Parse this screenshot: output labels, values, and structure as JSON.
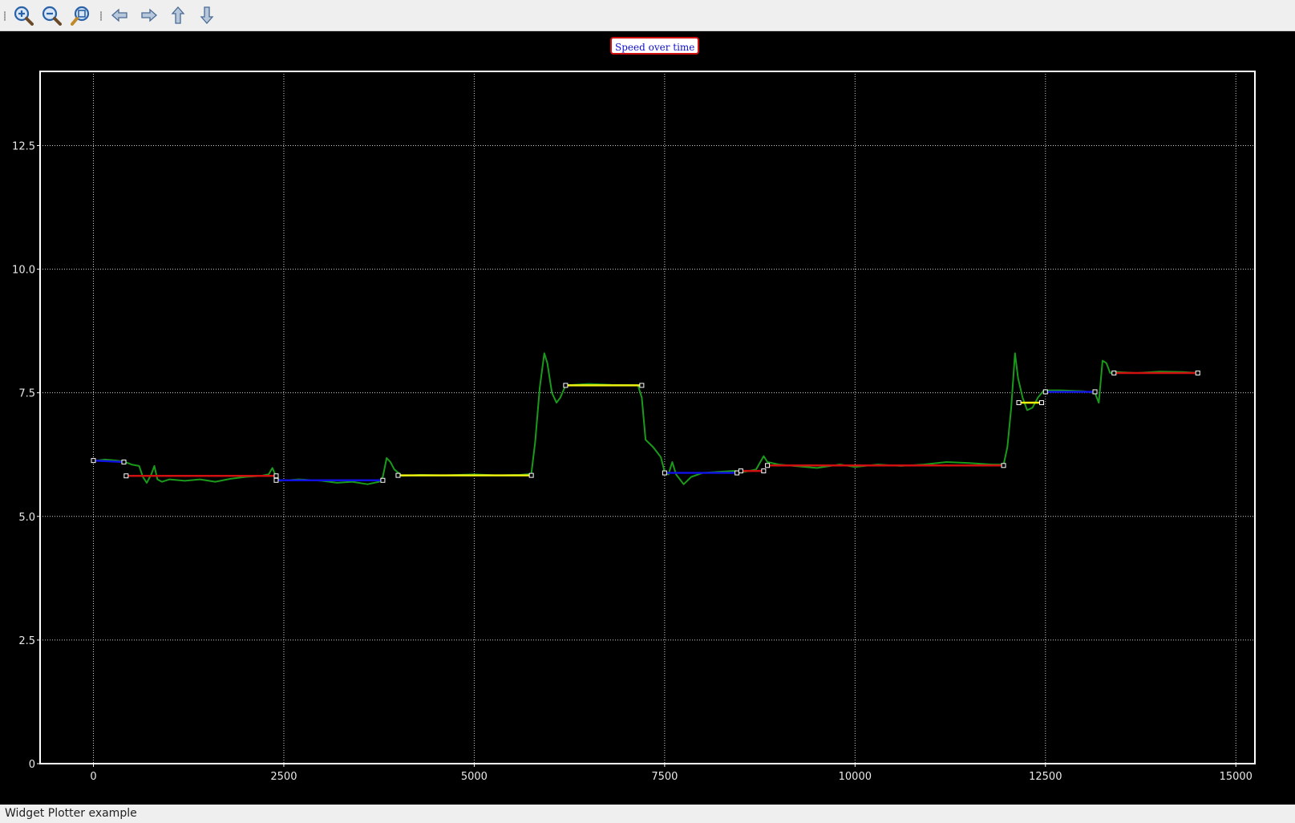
{
  "toolbar": {
    "buttons": [
      {
        "name": "zoom-in-icon"
      },
      {
        "name": "zoom-out-icon"
      },
      {
        "name": "zoom-reset-icon"
      },
      {
        "name": "arrow-left-icon"
      },
      {
        "name": "arrow-right-icon"
      },
      {
        "name": "arrow-up-icon"
      },
      {
        "name": "arrow-down-icon"
      }
    ]
  },
  "status": {
    "text": "Widget Plotter example"
  },
  "colors": {
    "background": "#000000",
    "grid": "#d0d0d0",
    "frame": "#ffffff",
    "speed_curve": "#1a9a1a",
    "segment_red": "#d01010",
    "segment_blue": "#1010e0",
    "segment_yellow": "#f0f010",
    "title_border": "#d01010",
    "title_text": "#1010d0"
  },
  "chart_data": {
    "type": "line",
    "title": "Speed over time",
    "xlabel": "",
    "ylabel": "",
    "xlim": [
      -700,
      15250
    ],
    "ylim": [
      0,
      14
    ],
    "x_ticks": [
      0,
      2500,
      5000,
      7500,
      10000,
      12500,
      15000
    ],
    "x_tick_labels": [
      "0",
      "2500",
      "5000",
      "7500",
      "10000",
      "12500",
      "15000"
    ],
    "y_ticks": [
      0,
      2.5,
      5,
      7.5,
      10,
      12.5
    ],
    "y_tick_labels": [
      "0",
      "2.5",
      "5.0",
      "7.5",
      "10.0",
      "12.5"
    ],
    "grid": true,
    "series": [
      {
        "type": "line",
        "color": "#1a9a1a",
        "points": [
          [
            0,
            6.12
          ],
          [
            150,
            6.15
          ],
          [
            300,
            6.13
          ],
          [
            420,
            6.1
          ],
          [
            500,
            6.05
          ],
          [
            600,
            6.02
          ],
          [
            650,
            5.8
          ],
          [
            700,
            5.68
          ],
          [
            760,
            5.85
          ],
          [
            800,
            6.02
          ],
          [
            840,
            5.75
          ],
          [
            900,
            5.7
          ],
          [
            1000,
            5.75
          ],
          [
            1200,
            5.72
          ],
          [
            1400,
            5.75
          ],
          [
            1600,
            5.7
          ],
          [
            1800,
            5.76
          ],
          [
            2000,
            5.8
          ],
          [
            2200,
            5.82
          ],
          [
            2300,
            5.85
          ],
          [
            2350,
            5.98
          ],
          [
            2400,
            5.8
          ],
          [
            2450,
            5.72
          ],
          [
            2700,
            5.75
          ],
          [
            3000,
            5.72
          ],
          [
            3200,
            5.68
          ],
          [
            3400,
            5.7
          ],
          [
            3600,
            5.65
          ],
          [
            3750,
            5.7
          ],
          [
            3800,
            5.8
          ],
          [
            3850,
            6.18
          ],
          [
            3900,
            6.1
          ],
          [
            3950,
            5.95
          ],
          [
            4050,
            5.82
          ],
          [
            4300,
            5.84
          ],
          [
            4600,
            5.83
          ],
          [
            5000,
            5.85
          ],
          [
            5300,
            5.83
          ],
          [
            5600,
            5.84
          ],
          [
            5750,
            5.86
          ],
          [
            5800,
            6.5
          ],
          [
            5860,
            7.6
          ],
          [
            5920,
            8.3
          ],
          [
            5960,
            8.1
          ],
          [
            6020,
            7.5
          ],
          [
            6080,
            7.3
          ],
          [
            6130,
            7.4
          ],
          [
            6200,
            7.65
          ],
          [
            6500,
            7.68
          ],
          [
            6800,
            7.66
          ],
          [
            7150,
            7.65
          ],
          [
            7200,
            7.4
          ],
          [
            7250,
            6.55
          ],
          [
            7350,
            6.4
          ],
          [
            7450,
            6.2
          ],
          [
            7500,
            5.9
          ],
          [
            7550,
            5.85
          ],
          [
            7600,
            6.1
          ],
          [
            7650,
            5.85
          ],
          [
            7750,
            5.65
          ],
          [
            7850,
            5.8
          ],
          [
            8000,
            5.88
          ],
          [
            8200,
            5.9
          ],
          [
            8400,
            5.92
          ],
          [
            8550,
            5.9
          ],
          [
            8700,
            5.95
          ],
          [
            8800,
            6.22
          ],
          [
            8850,
            6.1
          ],
          [
            9000,
            6.05
          ],
          [
            9200,
            6.02
          ],
          [
            9500,
            5.98
          ],
          [
            9800,
            6.05
          ],
          [
            10000,
            6.0
          ],
          [
            10300,
            6.05
          ],
          [
            10600,
            6.02
          ],
          [
            10900,
            6.05
          ],
          [
            11200,
            6.1
          ],
          [
            11500,
            6.08
          ],
          [
            11800,
            6.05
          ],
          [
            11950,
            6.05
          ],
          [
            12000,
            6.4
          ],
          [
            12050,
            7.2
          ],
          [
            12100,
            8.3
          ],
          [
            12140,
            7.8
          ],
          [
            12200,
            7.4
          ],
          [
            12260,
            7.15
          ],
          [
            12330,
            7.2
          ],
          [
            12400,
            7.4
          ],
          [
            12480,
            7.55
          ],
          [
            12700,
            7.55
          ],
          [
            13000,
            7.53
          ],
          [
            13150,
            7.5
          ],
          [
            13200,
            7.3
          ],
          [
            13250,
            8.15
          ],
          [
            13300,
            8.1
          ],
          [
            13350,
            7.9
          ],
          [
            13450,
            7.92
          ],
          [
            13700,
            7.9
          ],
          [
            14000,
            7.93
          ],
          [
            14300,
            7.92
          ],
          [
            14500,
            7.9
          ]
        ]
      }
    ],
    "segments": [
      {
        "color": "#1010e0",
        "x1": 0,
        "x2": 400,
        "y1": 6.13,
        "y2": 6.1
      },
      {
        "color": "#d01010",
        "x1": 430,
        "x2": 2400,
        "y1": 5.82,
        "y2": 5.82
      },
      {
        "color": "#1010e0",
        "x1": 2400,
        "x2": 3800,
        "y1": 5.73,
        "y2": 5.73
      },
      {
        "color": "#f0f010",
        "x1": 4000,
        "x2": 5750,
        "y1": 5.83,
        "y2": 5.83
      },
      {
        "color": "#f0f010",
        "x1": 6200,
        "x2": 7200,
        "y1": 7.65,
        "y2": 7.65
      },
      {
        "color": "#1010e0",
        "x1": 7500,
        "x2": 8450,
        "y1": 5.88,
        "y2": 5.88
      },
      {
        "color": "#d01010",
        "x1": 8500,
        "x2": 8800,
        "y1": 5.92,
        "y2": 5.92
      },
      {
        "color": "#d01010",
        "x1": 8850,
        "x2": 11950,
        "y1": 6.03,
        "y2": 6.03
      },
      {
        "color": "#f0f010",
        "x1": 12150,
        "x2": 12450,
        "y1": 7.3,
        "y2": 7.3
      },
      {
        "color": "#1010e0",
        "x1": 12500,
        "x2": 13150,
        "y1": 7.52,
        "y2": 7.52
      },
      {
        "color": "#d01010",
        "x1": 13400,
        "x2": 14500,
        "y1": 7.9,
        "y2": 7.9
      }
    ]
  }
}
